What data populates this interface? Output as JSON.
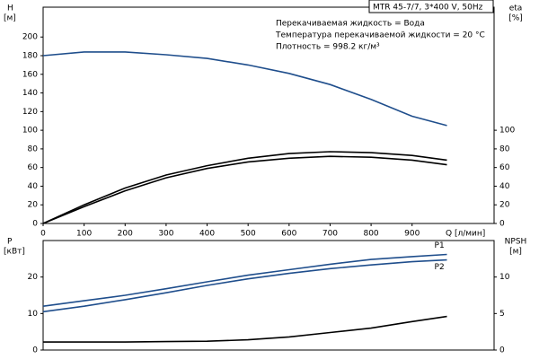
{
  "chart_data": [
    {
      "type": "line",
      "model": "MTR 45-7/7, 3*400 V, 50Hz",
      "notes": [
        "Перекачиваемая жидкость = Вода",
        "Температура перекачиваемой жидкости = 20 °C",
        "Плотность = 998.2 кг/м³"
      ],
      "x_label": "Q [л/мин]",
      "y_label": "H",
      "y_unit": "[м]",
      "y2_label": "eta",
      "y2_unit": "[%]",
      "x": [
        0,
        100,
        200,
        300,
        400,
        500,
        600,
        700,
        800,
        900,
        985
      ],
      "xlim": [
        0,
        1100
      ],
      "xticks": [
        0,
        100,
        200,
        300,
        400,
        500,
        600,
        700,
        800,
        900
      ],
      "ylim": [
        0,
        232
      ],
      "yticks": [
        0,
        20,
        40,
        60,
        80,
        100,
        120,
        140,
        160,
        180,
        200
      ],
      "y2lim": [
        0,
        232
      ],
      "y2ticks": [
        0,
        20,
        40,
        60,
        80,
        100
      ],
      "series": [
        {
          "color": "#1f4e8c",
          "values": [
            180,
            184,
            184,
            181,
            177,
            170,
            161,
            149,
            133,
            115,
            105
          ]
        },
        {
          "color": "#000000",
          "axis": "y2",
          "values": [
            0,
            20,
            38,
            52,
            62,
            70,
            75,
            77,
            76,
            73,
            68
          ]
        },
        {
          "color": "#000000",
          "axis": "y2",
          "values": [
            0,
            18,
            35,
            49,
            59,
            66,
            70,
            72,
            71,
            68,
            63
          ]
        }
      ]
    },
    {
      "type": "line",
      "y_label": "P",
      "y_unit": "[кВт]",
      "y2_label": "NPSH",
      "y2_unit": "[м]",
      "x": [
        0,
        100,
        200,
        300,
        400,
        500,
        600,
        700,
        800,
        900,
        985
      ],
      "xlim": [
        0,
        1100
      ],
      "ylim": [
        0,
        30
      ],
      "yticks": [
        0,
        10,
        20
      ],
      "y2lim": [
        0,
        15
      ],
      "y2ticks": [
        0,
        5,
        10
      ],
      "series": [
        {
          "name": "P1",
          "color": "#1f4e8c",
          "values": [
            12,
            13.5,
            15,
            16.8,
            18.7,
            20.5,
            22,
            23.5,
            24.8,
            25.6,
            26.2
          ]
        },
        {
          "name": "P2",
          "color": "#1f4e8c",
          "values": [
            10.5,
            12,
            13.8,
            15.7,
            17.7,
            19.5,
            21,
            22.3,
            23.3,
            24.2,
            24.7
          ]
        },
        {
          "color": "#000000",
          "axis": "y2",
          "values": [
            1.1,
            1.1,
            1.1,
            1.15,
            1.2,
            1.4,
            1.8,
            2.4,
            3.0,
            3.9,
            4.6
          ]
        }
      ]
    }
  ]
}
